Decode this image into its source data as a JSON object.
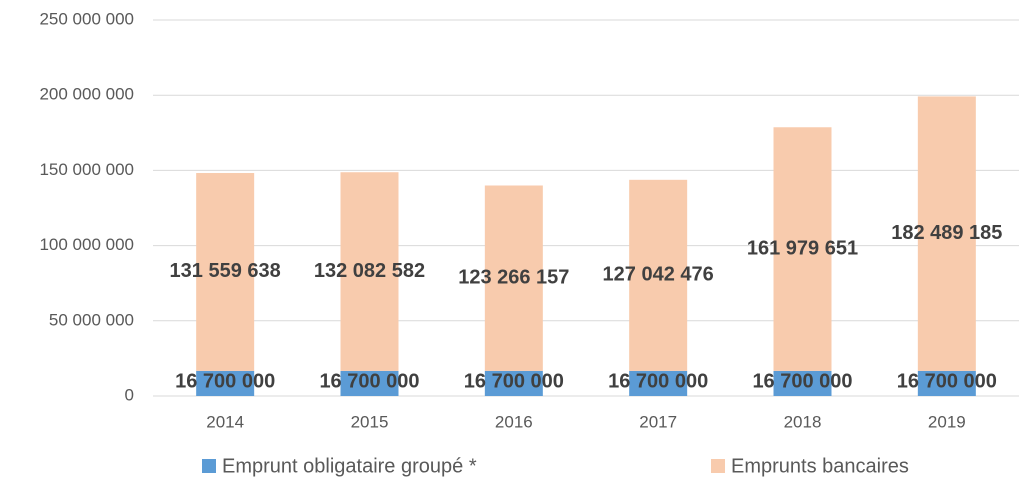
{
  "chart_data": {
    "type": "stacked_bar",
    "categories": [
      "2014",
      "2015",
      "2016",
      "2017",
      "2018",
      "2019"
    ],
    "series": [
      {
        "name": "Emprunt obligataire groupé *",
        "color": "#5b9bd5",
        "values": [
          16700000,
          16700000,
          16700000,
          16700000,
          16700000,
          16700000
        ],
        "value_labels": [
          "16 700 000",
          "16 700 000",
          "16 700 000",
          "16 700 000",
          "16 700 000",
          "16 700 000"
        ]
      },
      {
        "name": "Emprunts bancaires",
        "color": "#f8cbad",
        "values": [
          131559638,
          132082582,
          123266157,
          127042476,
          161979651,
          182489185
        ],
        "value_labels": [
          "131 559 638",
          "132 082 582",
          "123 266 157",
          "127 042 476",
          "161 979 651",
          "182 489 185"
        ]
      }
    ],
    "ylim": [
      0,
      250000000
    ],
    "yticks": [
      {
        "value": 0,
        "label": "0"
      },
      {
        "value": 50000000,
        "label": "50 000 000"
      },
      {
        "value": 100000000,
        "label": "100 000 000"
      },
      {
        "value": 150000000,
        "label": "150 000 000"
      },
      {
        "value": 200000000,
        "label": "200 000 000"
      },
      {
        "value": 250000000,
        "label": "250 000 000"
      }
    ],
    "grid": true,
    "legend": "bottom"
  }
}
